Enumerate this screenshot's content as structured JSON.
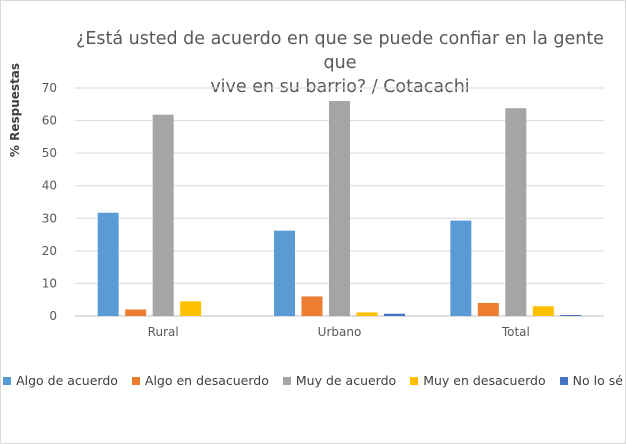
{
  "chart_data": {
    "type": "bar",
    "title_line1": "¿Está usted de acuerdo en que se puede confiar en la gente que",
    "title_line2": "vive en su barrio? / Cotacachi",
    "xlabel": "",
    "ylabel": "% Respuestas",
    "ylim": [
      0,
      70
    ],
    "yticks": [
      "0",
      "10",
      "20",
      "30",
      "40",
      "50",
      "60",
      "70"
    ],
    "categories": [
      "Rural",
      "Urbano",
      "Total"
    ],
    "series": [
      {
        "name": "Algo de acuerdo",
        "color": "#5b9bd5",
        "values": [
          31.7,
          26.2,
          29.3
        ]
      },
      {
        "name": "Algo en desacuerdo",
        "color": "#ed7d31",
        "values": [
          2.0,
          6.0,
          4.0
        ]
      },
      {
        "name": "Muy de acuerdo",
        "color": "#a5a5a5",
        "values": [
          61.8,
          66.0,
          63.8
        ]
      },
      {
        "name": "Muy en desacuerdo",
        "color": "#ffc000",
        "values": [
          4.5,
          1.1,
          3.0
        ]
      },
      {
        "name": "No lo sé",
        "color": "#4472c4",
        "values": [
          0.0,
          0.7,
          0.3
        ]
      }
    ],
    "grid": true,
    "legend_position": "bottom"
  }
}
